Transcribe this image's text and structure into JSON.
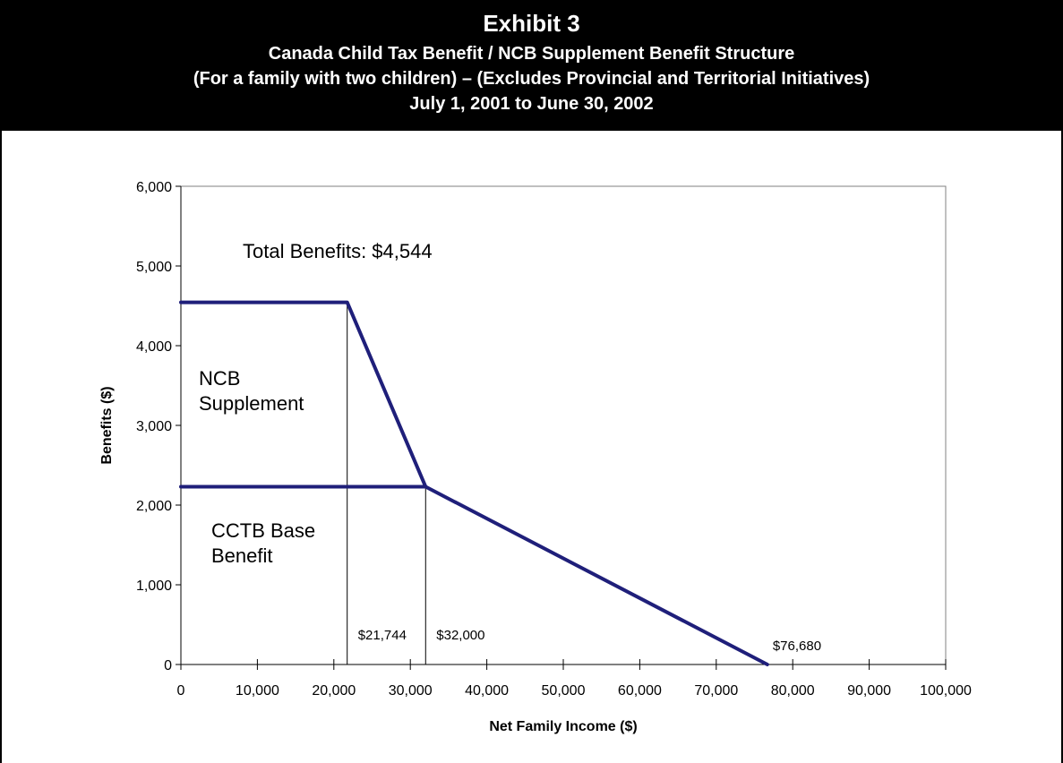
{
  "header": {
    "title": "Exhibit 3",
    "subtitle1": "Canada Child Tax Benefit / NCB Supplement Benefit Structure",
    "subtitle2": "(For a family with two children) – (Excludes Provincial and Territorial Initiatives)",
    "subtitle3": "July 1, 2001 to June 30, 2002"
  },
  "colors": {
    "line": "#1f1f7a",
    "header_bg": "#000000",
    "header_text": "#ffffff"
  },
  "chart_data": {
    "type": "line",
    "xlabel": "Net Family Income ($)",
    "ylabel": "Benefits ($)",
    "xlim": [
      0,
      100000
    ],
    "ylim": [
      0,
      6000
    ],
    "x_ticks": [
      "0",
      "10,000",
      "20,000",
      "30,000",
      "40,000",
      "50,000",
      "60,000",
      "70,000",
      "80,000",
      "90,000",
      "100,000"
    ],
    "y_ticks": [
      "0",
      "1,000",
      "2,000",
      "3,000",
      "4,000",
      "5,000",
      "6,000"
    ],
    "x_tick_values": [
      0,
      10000,
      20000,
      30000,
      40000,
      50000,
      60000,
      70000,
      80000,
      90000,
      100000
    ],
    "y_tick_values": [
      0,
      1000,
      2000,
      3000,
      4000,
      5000,
      6000
    ],
    "series": [
      {
        "x": [
          0,
          21744,
          32000,
          76680
        ],
        "y": [
          4544,
          4544,
          2230,
          0
        ]
      },
      {
        "x": [
          0,
          32000
        ],
        "y": [
          2230,
          2230
        ]
      }
    ],
    "markers": [
      {
        "x": 21744,
        "label": "$21,744"
      },
      {
        "x": 32000,
        "label": "$32,000"
      },
      {
        "x": 76680,
        "label": "$76,680"
      }
    ],
    "annotations": [
      {
        "text": "Total Benefits: $4,544"
      },
      {
        "text": "NCB",
        "text2": "Supplement"
      },
      {
        "text": "CCTB Base",
        "text2": "Benefit"
      }
    ],
    "grid": false,
    "legend": "none"
  }
}
